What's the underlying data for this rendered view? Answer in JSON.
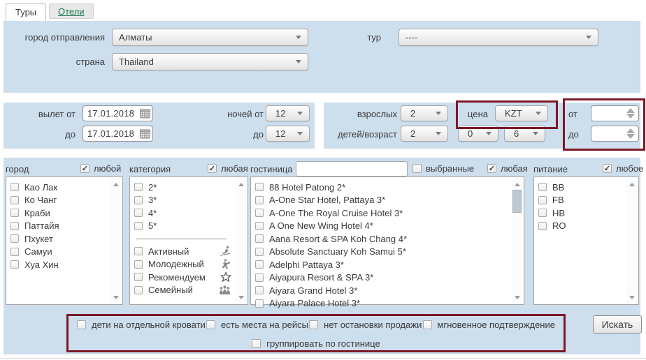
{
  "tabs": {
    "tours": "Туры",
    "hotels": "Отели"
  },
  "top_panel": {
    "departure_city_label": "город отправления",
    "departure_city_value": "Алматы",
    "country_label": "страна",
    "country_value": "Thailand",
    "tour_label": "тур",
    "tour_value": "----"
  },
  "dates_panel": {
    "depart_from_label": "вылет от",
    "depart_from_value": "17.01.2018",
    "depart_to_label": "до",
    "depart_to_value": "17.01.2018",
    "nights_from_label": "ночей от",
    "nights_from_value": "12",
    "nights_to_label": "до",
    "nights_to_value": "12"
  },
  "guests_panel": {
    "adults_label": "взрослых",
    "adults_value": "2",
    "children_label": "детей/возраст",
    "children_count_value": "2",
    "child_age1_value": "0",
    "child_age2_value": "6",
    "price_label": "цена",
    "currency_value": "KZT",
    "price_from_label": "от",
    "price_from_value": "",
    "price_to_label": "до",
    "price_to_value": ""
  },
  "filters": {
    "city": {
      "label": "город",
      "any_label": "любой",
      "any_checked": true,
      "items": [
        "Као Лак",
        "Ко Чанг",
        "Краби",
        "Паттайя",
        "Пхукет",
        "Самуи",
        "Хуа Хин"
      ]
    },
    "category": {
      "label": "категория",
      "any_label": "любая",
      "any_checked": true,
      "stars": [
        "2*",
        "3*",
        "4*",
        "5*"
      ],
      "special": [
        {
          "label": "Активный",
          "icon": "skier-icon"
        },
        {
          "label": "Молодежный",
          "icon": "dancer-icon"
        },
        {
          "label": "Рекомендуем",
          "icon": "star-icon"
        },
        {
          "label": "Семейный",
          "icon": "family-icon"
        }
      ]
    },
    "hotel": {
      "label": "гостиница",
      "search_value": "",
      "selected_label": "выбранные",
      "selected_checked": false,
      "any_label": "любая",
      "any_checked": true,
      "items": [
        "88 Hotel Patong 2*",
        "A-One Star Hotel, Pattaya 3*",
        "A-One The Royal Cruise Hotel 3*",
        "A One New Wing Hotel 4*",
        "Aana Resort & SPA Koh Chang 4*",
        "Absolute Sanctuary Koh Samui 5*",
        "Adelphi Pattaya 3*",
        "Aiyapura Resort & SPA 3*",
        "Aiyara Grand Hotel 3*",
        "Aiyara Palace Hotel 3*"
      ]
    },
    "meal": {
      "label": "питание",
      "any_label": "любое",
      "any_checked": true,
      "items": [
        "BB",
        "FB",
        "HB",
        "RO"
      ]
    }
  },
  "options": {
    "row1": [
      "дети на отдельной кровати",
      "есть места на рейсы",
      "нет остановки продажи",
      "мгновенное подтверждение"
    ],
    "row2": [
      "группировать по гостинице"
    ]
  },
  "search_button_label": "Искать",
  "colors": {
    "panel": "#cddeed",
    "annotation": "#7d1826",
    "link_green": "#1e7a50",
    "text": "#3b3b3b"
  }
}
